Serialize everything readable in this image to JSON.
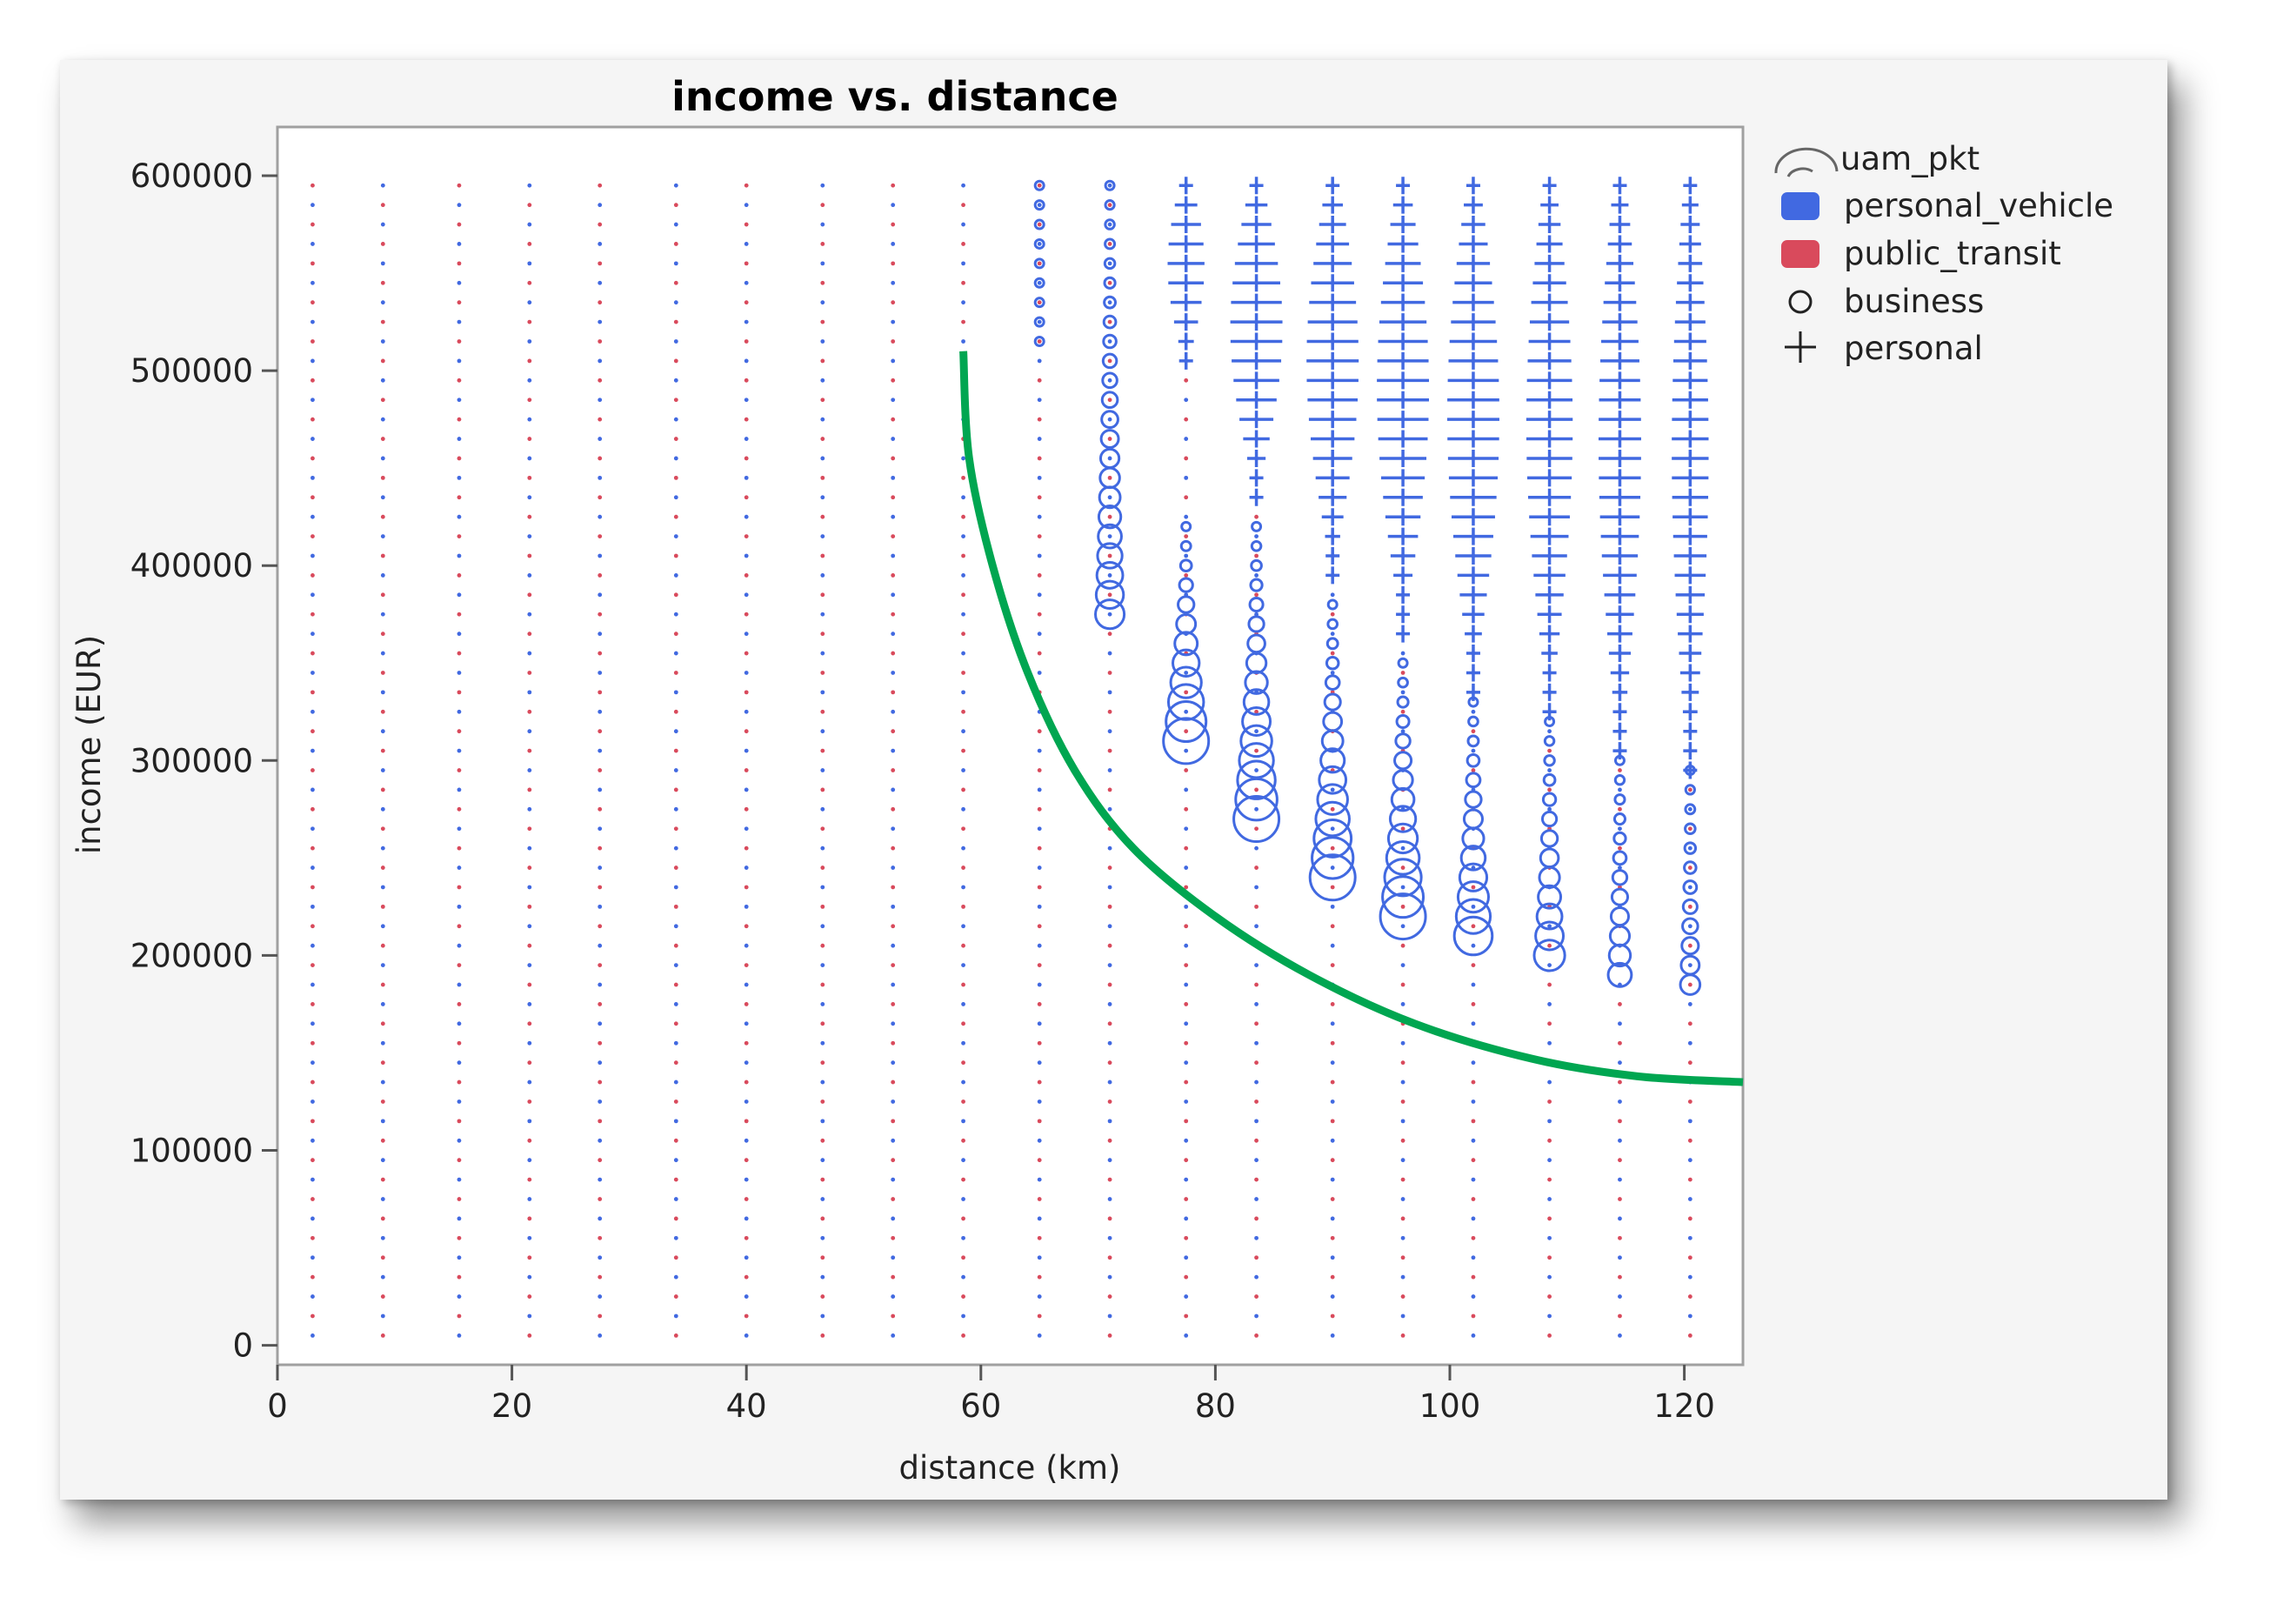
{
  "chart_data": {
    "type": "scatter",
    "title": "income vs. distance",
    "xlabel": "distance (km)",
    "ylabel": "income (EUR)",
    "xlim": [
      0,
      125
    ],
    "ylim": [
      -10000,
      625000
    ],
    "x_ticks": [
      0,
      20,
      40,
      60,
      80,
      100,
      120
    ],
    "y_ticks": [
      0,
      100000,
      200000,
      300000,
      400000,
      500000,
      600000
    ],
    "x_tick_labels": [
      "0",
      "20",
      "40",
      "60",
      "80",
      "100",
      "120"
    ],
    "y_tick_labels": [
      "0",
      "100000",
      "200000",
      "300000",
      "400000",
      "500000",
      "600000"
    ],
    "grid": false,
    "legend_position": "right",
    "legend": {
      "size_variable": "uam_pkt",
      "color_entries": [
        {
          "label": "personal_vehicle",
          "color": "#4169e1"
        },
        {
          "label": "public_transit",
          "color": "#d94a5c"
        }
      ],
      "marker_entries": [
        {
          "label": "business",
          "marker": "circle"
        },
        {
          "label": "personal",
          "marker": "plus"
        }
      ]
    },
    "series": [
      {
        "marker": "circle",
        "x": 65,
        "big_marker_min_income": 515000,
        "max_income": 595000,
        "peak_size": 0
      },
      {
        "marker": "circle",
        "x": 71,
        "big_marker_min_income": 375000,
        "max_income": 595000,
        "peak_size": 0.55
      },
      {
        "marker": "circle",
        "x": 77.5,
        "big_marker_min_income": 305000,
        "max_income": 420000,
        "peak_size": 1
      },
      {
        "marker": "plus",
        "x": 77.5,
        "big_marker_min_income": 505000,
        "max_income": 595000,
        "peak_size": 0.6
      },
      {
        "marker": "circle",
        "x": 83.5,
        "big_marker_min_income": 265000,
        "max_income": 420000,
        "peak_size": 1
      },
      {
        "marker": "plus",
        "x": 83.5,
        "big_marker_min_income": 435000,
        "max_income": 595000,
        "peak_size": 1
      },
      {
        "marker": "circle",
        "x": 90,
        "big_marker_min_income": 235000,
        "max_income": 380000,
        "peak_size": 1
      },
      {
        "marker": "plus",
        "x": 90,
        "big_marker_min_income": 395000,
        "max_income": 595000,
        "peak_size": 1
      },
      {
        "marker": "circle",
        "x": 96,
        "big_marker_min_income": 215000,
        "max_income": 350000,
        "peak_size": 1
      },
      {
        "marker": "plus",
        "x": 96,
        "big_marker_min_income": 365000,
        "max_income": 595000,
        "peak_size": 1
      },
      {
        "marker": "circle",
        "x": 102,
        "big_marker_min_income": 205000,
        "max_income": 330000,
        "peak_size": 0.8
      },
      {
        "marker": "plus",
        "x": 102,
        "big_marker_min_income": 335000,
        "max_income": 595000,
        "peak_size": 1
      },
      {
        "marker": "circle",
        "x": 108.5,
        "big_marker_min_income": 195000,
        "max_income": 320000,
        "peak_size": 0.6
      },
      {
        "marker": "plus",
        "x": 108.5,
        "big_marker_min_income": 325000,
        "max_income": 595000,
        "peak_size": 0.85
      },
      {
        "marker": "circle",
        "x": 114.5,
        "big_marker_min_income": 185000,
        "max_income": 300000,
        "peak_size": 0.4
      },
      {
        "marker": "plus",
        "x": 114.5,
        "big_marker_min_income": 305000,
        "max_income": 595000,
        "peak_size": 0.75
      },
      {
        "marker": "circle",
        "x": 120.5,
        "big_marker_min_income": 185000,
        "max_income": 295000,
        "peak_size": 0.3
      },
      {
        "marker": "plus",
        "x": 120.5,
        "big_marker_min_income": 295000,
        "max_income": 595000,
        "peak_size": 0.6
      }
    ],
    "background_columns_x": [
      3,
      9,
      15.5,
      21.5,
      27.5,
      34,
      40,
      46.5,
      52.5,
      58.5,
      65,
      71,
      77.5,
      83.5,
      90,
      96,
      102,
      108.5,
      114.5,
      120.5
    ],
    "background_income_range": [
      5000,
      595000
    ],
    "annotation_curve": {
      "color": "#00a651",
      "points": [
        [
          58.5,
          510000
        ],
        [
          59,
          455000
        ],
        [
          61,
          400000
        ],
        [
          64,
          345000
        ],
        [
          68,
          295000
        ],
        [
          73,
          255000
        ],
        [
          80,
          220000
        ],
        [
          88,
          190000
        ],
        [
          97,
          165000
        ],
        [
          107,
          147000
        ],
        [
          116,
          138000
        ],
        [
          125,
          135000
        ]
      ]
    }
  }
}
